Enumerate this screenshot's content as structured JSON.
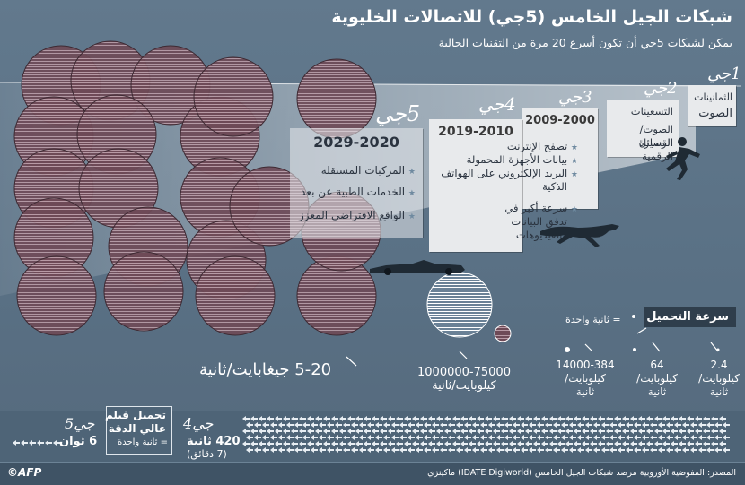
{
  "header": {
    "title": "شبكات الجيل الخامس (5جي) للاتصالات الخليوية",
    "subtitle": "يمكن لشبكات 5جي أن تكون أسرع 20 مرة من التقنيات الحالية"
  },
  "generations": [
    {
      "gen": "1جي",
      "era_lines": [
        "الثمانينات"
      ],
      "features": [
        "الصوت"
      ]
    },
    {
      "gen": "2جي",
      "era_lines": [
        "التسعينات"
      ],
      "features": [
        "الصوت/الرسائل",
        "القصيرة الرقمية"
      ]
    },
    {
      "gen": "3جي",
      "era_lines": [
        "2009-2000"
      ],
      "features": []
    },
    {
      "gen": "4جي",
      "era_lines": [
        "2019-2010"
      ],
      "features": [
        "تصفح الإنترنت",
        "بيانات الأجهزة المحمولة",
        "البريد الإلكتروني على الهواتف",
        "الذكية",
        "سرعة أكبر في",
        "تدفق البيانات",
        "والفيديوهات"
      ]
    },
    {
      "gen": "5جي",
      "era_lines": [
        "2029-2020"
      ],
      "features": [
        "المركبات المستقلة",
        "الخدمات الطبية عن بعد",
        "الواقع الافتراضي المعزز"
      ]
    }
  ],
  "speed": {
    "legend_title": "سرعة التحميل",
    "legend_unit": "= ثانية واحدة",
    "values": [
      {
        "value": "2.4",
        "unit_lines": [
          "كيلوبايت/",
          "ثانية"
        ]
      },
      {
        "value": "64",
        "unit_lines": [
          "كيلوبايت/",
          "ثانية"
        ]
      },
      {
        "value": "14000-384",
        "unit_lines": [
          "كيلوبايت/",
          "ثانية"
        ]
      },
      {
        "value": "1000000-75000",
        "unit_lines": [
          "كيلوبايت/ثانية"
        ]
      },
      {
        "value": "5-20 جيغابايت/ثانية",
        "unit_lines": []
      }
    ]
  },
  "download": {
    "title_lines": [
      "تحميل فيلم",
      "عالي الدقة"
    ],
    "unit": "= ثانية واحدة",
    "g4_label": "4جي",
    "g4_time": "420 ثانية",
    "g4_sub": "(7 دقائق)",
    "g5_label": "5جي",
    "g5_time": "6 ثوان"
  },
  "footer": {
    "source": "المصدر: المفوضية الأوروبية مرصد شبكات الجيل الخامس (IDATE Digiworld) ماكينزي",
    "logo": "©AFP"
  }
}
